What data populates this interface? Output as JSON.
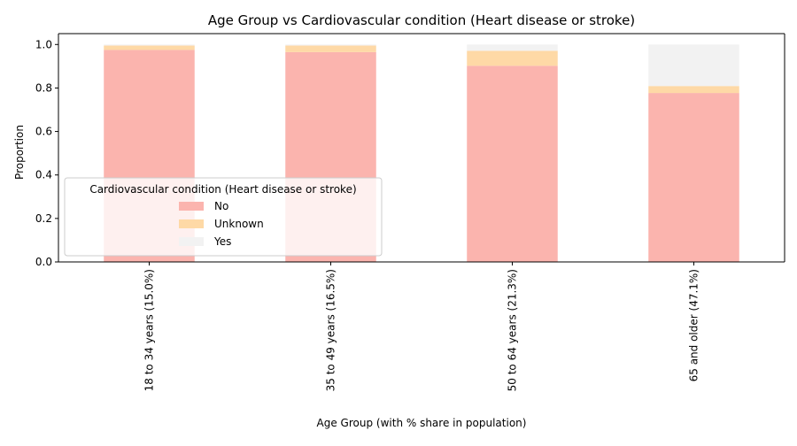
{
  "chart_data": {
    "type": "bar",
    "stacked": true,
    "title": "Age Group vs Cardiovascular condition (Heart disease or stroke)",
    "xlabel": "Age Group (with % share in population)",
    "ylabel": "Proportion",
    "categories": [
      "18 to 34 years (15.0%)",
      "35 to 49 years (16.5%)",
      "50 to 64 years (21.3%)",
      "65 and older (47.1%)"
    ],
    "series": [
      {
        "name": "No",
        "color": "#fbb4ae",
        "values": [
          0.975,
          0.965,
          0.902,
          0.777
        ]
      },
      {
        "name": "Unknown",
        "color": "#fed9a6",
        "values": [
          0.02,
          0.03,
          0.069,
          0.032
        ]
      },
      {
        "name": "Yes",
        "color": "#f2f2f2",
        "values": [
          0.005,
          0.005,
          0.029,
          0.191
        ]
      }
    ],
    "ylim": [
      0,
      1.05
    ],
    "yticks": [
      "0.0",
      "0.2",
      "0.4",
      "0.6",
      "0.8",
      "1.0"
    ],
    "grid": false,
    "legend": {
      "title": "Cardiovascular condition (Heart disease or stroke)",
      "placement": "lower-left"
    }
  }
}
